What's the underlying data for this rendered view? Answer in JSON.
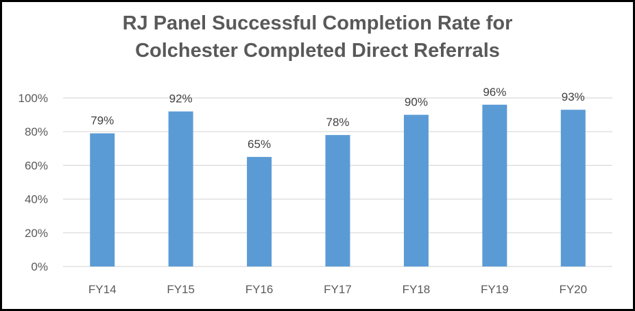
{
  "chart_data": {
    "type": "bar",
    "title_lines": [
      "RJ Panel Successful Completion Rate for",
      "Colchester Completed Direct Referrals"
    ],
    "categories": [
      "FY14",
      "FY15",
      "FY16",
      "FY17",
      "FY18",
      "FY19",
      "FY20"
    ],
    "values": [
      79,
      92,
      65,
      78,
      90,
      96,
      93
    ],
    "data_labels": [
      "79%",
      "92%",
      "65%",
      "78%",
      "90%",
      "96%",
      "93%"
    ],
    "y_ticks": [
      "0%",
      "20%",
      "40%",
      "60%",
      "80%",
      "100%"
    ],
    "ylim": [
      0,
      100
    ],
    "xlabel": "",
    "ylabel": "",
    "grid": true,
    "bar_color": "#5b9bd5",
    "grid_color": "#d9d9d9",
    "text_color": "#595959"
  }
}
